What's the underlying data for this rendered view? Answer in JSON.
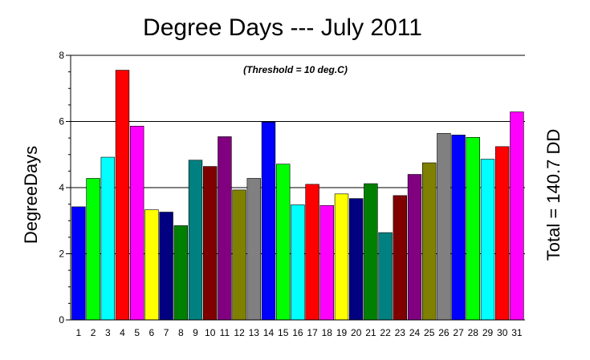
{
  "chart_data": {
    "type": "bar",
    "title": "Degree Days --- July 2011",
    "subtitle": "(Threshold = 10 deg.C)",
    "ylabel": "DegreeDays",
    "xlabel": "",
    "right_label": "Total = 140.7 DD",
    "ylim": [
      0,
      8
    ],
    "yticks": [
      0,
      2,
      4,
      6,
      8
    ],
    "grid": "horizontal at major ticks",
    "categories": [
      "1",
      "2",
      "3",
      "4",
      "5",
      "6",
      "7",
      "8",
      "9",
      "10",
      "11",
      "12",
      "13",
      "14",
      "15",
      "16",
      "17",
      "18",
      "19",
      "20",
      "21",
      "22",
      "23",
      "24",
      "25",
      "26",
      "27",
      "28",
      "29",
      "30",
      "31"
    ],
    "values": [
      3.42,
      4.28,
      4.92,
      7.55,
      5.86,
      3.33,
      3.26,
      2.85,
      4.83,
      4.64,
      5.54,
      3.93,
      4.28,
      5.98,
      4.71,
      3.48,
      4.1,
      3.46,
      3.81,
      3.67,
      4.12,
      2.64,
      3.76,
      4.4,
      4.75,
      5.64,
      5.59,
      5.52,
      4.86,
      5.24,
      6.29
    ],
    "colors": [
      "#0000ff",
      "#00ff00",
      "#00ffff",
      "#ff0000",
      "#ff00ff",
      "#ffff00",
      "#000080",
      "#008000",
      "#008080",
      "#800000",
      "#800080",
      "#808000",
      "#808080",
      "#0000ff",
      "#00ff00",
      "#00ffff",
      "#ff0000",
      "#ff00ff",
      "#ffff00",
      "#000080",
      "#008000",
      "#008080",
      "#800000",
      "#800080",
      "#808000",
      "#808080",
      "#0000ff",
      "#00ff00",
      "#00ffff",
      "#ff0000",
      "#ff00ff"
    ]
  }
}
